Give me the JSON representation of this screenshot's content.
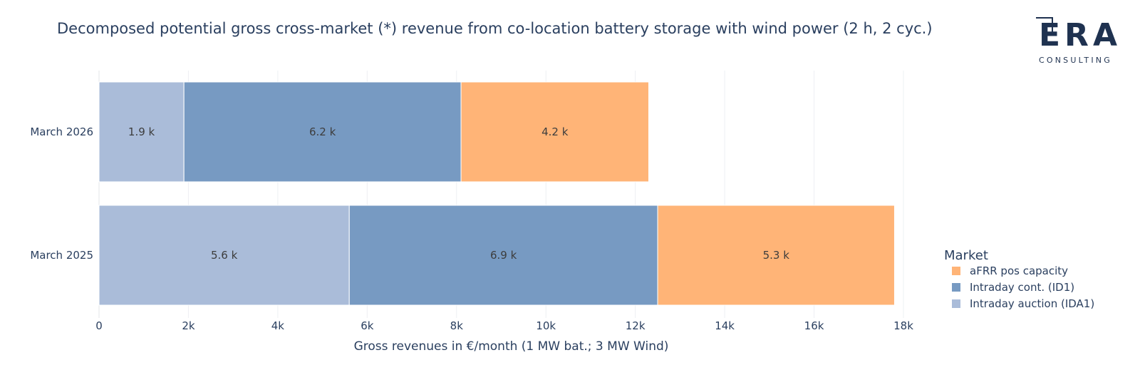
{
  "chart_data": {
    "type": "bar",
    "orientation": "horizontal",
    "stacked": true,
    "title": "Decomposed potential gross cross-market (*) revenue from co-location battery storage with wind power (2 h, 2 cyc.)",
    "xlabel": "Gross revenues in €/month (1 MW bat.; 3 MW Wind)",
    "ylabel": "",
    "xlim": [
      0,
      18000
    ],
    "x_ticks": [
      0,
      2000,
      4000,
      6000,
      8000,
      10000,
      12000,
      14000,
      16000,
      18000
    ],
    "x_tick_labels": [
      "0",
      "2k",
      "4k",
      "6k",
      "8k",
      "10k",
      "12k",
      "14k",
      "16k",
      "18k"
    ],
    "categories": [
      "March 2026",
      "March 2025"
    ],
    "series": [
      {
        "name": "Intraday auction (IDA1)",
        "color": "#aabcd9",
        "values": [
          1900,
          5600
        ],
        "labels": [
          "1.9 k",
          "5.6 k"
        ]
      },
      {
        "name": "Intraday cont. (ID1)",
        "color": "#779ac2",
        "values": [
          6200,
          6900
        ],
        "labels": [
          "6.2 k",
          "6.9 k"
        ]
      },
      {
        "name": "aFRR pos capacity",
        "color": "#ffb477",
        "values": [
          4200,
          5300
        ],
        "labels": [
          "4.2 k",
          "5.3 k"
        ]
      }
    ],
    "legend": {
      "title": "Market",
      "placement": "right-bottom",
      "order": [
        "aFRR pos capacity",
        "Intraday cont. (ID1)",
        "Intraday auction (IDA1)"
      ]
    },
    "grid": true
  },
  "logo": {
    "mark": "ERA",
    "sub": "CONSULTING"
  }
}
